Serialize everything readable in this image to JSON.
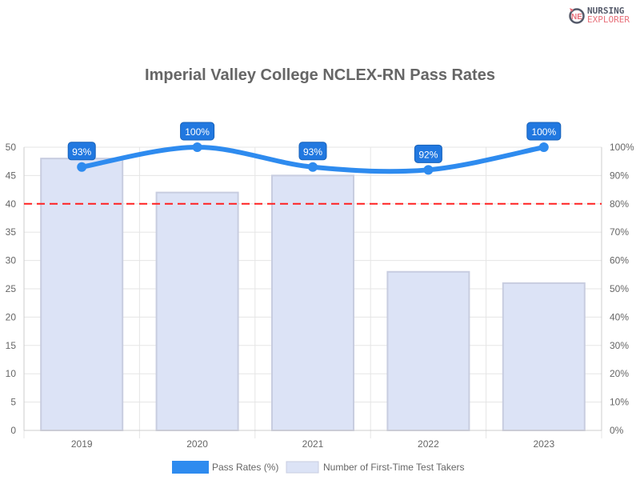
{
  "logo": {
    "line1": "NURSING",
    "line2": "EXPLORER"
  },
  "chart_data": {
    "type": "bar",
    "title": "Imperial Valley College NCLEX-RN Pass Rates",
    "categories": [
      "2019",
      "2020",
      "2021",
      "2022",
      "2023"
    ],
    "series": [
      {
        "name": "Pass Rates (%)",
        "type": "line",
        "axis": "right",
        "values": [
          93,
          100,
          93,
          92,
          100
        ],
        "labels": [
          "93%",
          "100%",
          "93%",
          "92%",
          "100%"
        ],
        "color": "#2e8bef"
      },
      {
        "name": "Number of First-Time Test Takers",
        "type": "bar",
        "axis": "left",
        "values": [
          48,
          42,
          45,
          28,
          26
        ],
        "color": "#dce3f6"
      }
    ],
    "left_axis": {
      "ylim": [
        0,
        50
      ],
      "ticks": [
        "0",
        "5",
        "10",
        "15",
        "20",
        "25",
        "30",
        "35",
        "40",
        "45",
        "50"
      ]
    },
    "right_axis": {
      "ylim": [
        0,
        100
      ],
      "ticks": [
        "0%",
        "10%",
        "20%",
        "30%",
        "40%",
        "50%",
        "60%",
        "70%",
        "80%",
        "90%",
        "100%"
      ]
    },
    "reference_line": {
      "value": 80,
      "axis": "right",
      "color": "#ff2020",
      "style": "dashed"
    },
    "grid": true,
    "legend_position": "bottom"
  }
}
